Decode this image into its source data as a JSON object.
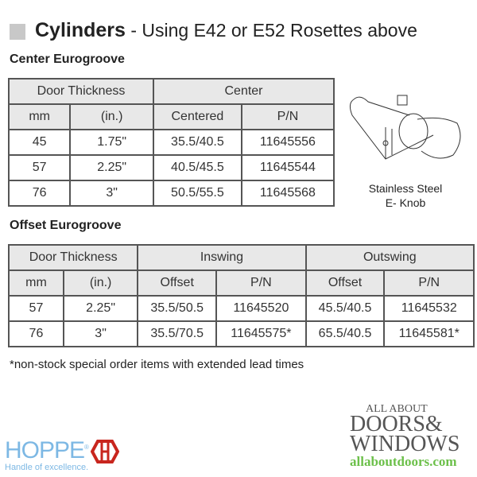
{
  "header": {
    "title": "Cylinders",
    "subtitle": "- Using E42 or E52 Rosettes above"
  },
  "center": {
    "heading": "Center Eurogroove",
    "group_headers": [
      "Door Thickness",
      "Center"
    ],
    "columns": [
      "mm",
      "(in.)",
      "Centered",
      "P/N"
    ],
    "rows": [
      [
        "45",
        "1.75\"",
        "35.5/40.5",
        "11645556"
      ],
      [
        "57",
        "2.25\"",
        "40.5/45.5",
        "11645544"
      ],
      [
        "76",
        "3\"",
        "50.5/55.5",
        "11645568"
      ]
    ]
  },
  "image_caption": {
    "line1": "Stainless Steel",
    "line2": "E- Knob"
  },
  "offset": {
    "heading": "Offset Eurogroove",
    "group_headers": [
      "Door Thickness",
      "Inswing",
      "Outswing"
    ],
    "columns": [
      "mm",
      "(in.)",
      "Offset",
      "P/N",
      "Offset",
      "P/N"
    ],
    "rows": [
      [
        "57",
        "2.25\"",
        "35.5/50.5",
        "11645520",
        "45.5/40.5",
        "11645532"
      ],
      [
        "76",
        "3\"",
        "35.5/70.5",
        "11645575*",
        "65.5/40.5",
        "11645581*"
      ]
    ]
  },
  "note": "*non-stock special order items with extended lead times",
  "logos": {
    "hoppe": "HOPPE",
    "hoppe_reg": "®",
    "hoppe_tagline": "Handle of excellence.",
    "aad_line1": "ALL ABOUT",
    "aad_line2": "DOORS&",
    "aad_line3": "WINDOWS",
    "aad_url": "allaboutdoors.com"
  },
  "colors": {
    "hoppe_blue": "#7db8e4",
    "hoppe_red": "#c8261e",
    "aad_green": "#6cc04a"
  }
}
